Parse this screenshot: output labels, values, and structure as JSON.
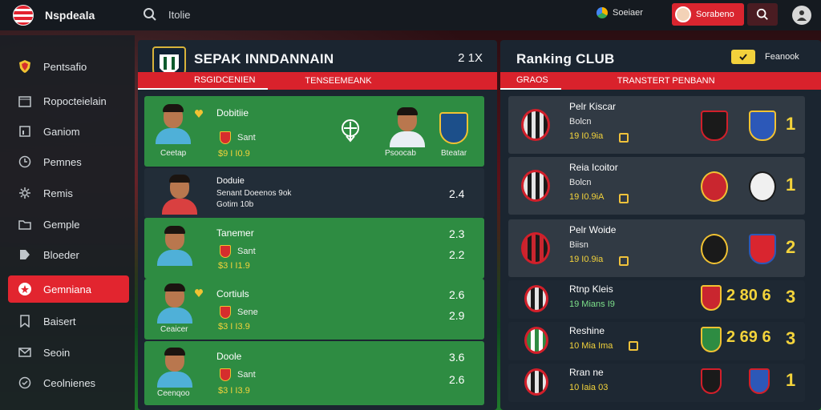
{
  "topbar": {
    "app_title": "Nspdeala",
    "search_text": "Itolie",
    "status_text": "Soeiaer",
    "profile_label": "Sorabeno",
    "icons": {
      "logo": "flag-logo-icon",
      "search": "search-icon",
      "status": "status-dot-icon",
      "user": "user-icon"
    }
  },
  "sidebar": {
    "items": [
      {
        "label": "Pentsafio",
        "icon": "shield-icon",
        "active": false
      },
      {
        "label": "Ropocteielain",
        "icon": "calendar-icon",
        "active": false
      },
      {
        "label": "Ganiom",
        "icon": "chart-icon",
        "active": false
      },
      {
        "label": "Pemnes",
        "icon": "clock-icon",
        "active": false
      },
      {
        "label": "Remis",
        "icon": "gear-icon",
        "active": false
      },
      {
        "label": "Gemple",
        "icon": "folder-icon",
        "active": false
      },
      {
        "label": "Bloeder",
        "icon": "tag-icon",
        "active": false
      },
      {
        "label": "Gemniana",
        "icon": "star-icon",
        "active": true
      },
      {
        "label": "Baisert",
        "icon": "bookmark-icon",
        "active": false
      },
      {
        "label": "Seoin",
        "icon": "mail-icon",
        "active": false
      },
      {
        "label": "Ceolnienes",
        "icon": "help-icon",
        "active": false
      }
    ],
    "active_color": "#e2252f"
  },
  "left_panel": {
    "title": "SEPAK INNDANNAIN",
    "meta": "2 1X",
    "tabs": [
      "RSGIDCENIEN",
      "TENSEEMEANK"
    ],
    "rows": [
      {
        "name": "Dobitiie",
        "sub": "Sant",
        "stats": "$9  I  I0.9",
        "caption_left": "Ceetap",
        "caption_right": "Psoocab",
        "caption_far": "Bteatar",
        "value": "",
        "value2": ""
      },
      {
        "name": "Doduie",
        "sub": "Senant  Doeenos 9ok",
        "stats": "Gotim 10b",
        "caption_left": "",
        "caption_right": "",
        "caption_far": "",
        "value": "2.4",
        "value2": ""
      },
      {
        "name": "Tanemer",
        "sub": "Sant",
        "stats": "$3  I  I1.9",
        "caption_left": "",
        "caption_right": "",
        "caption_far": "",
        "value": "2.3",
        "value2": "2.2"
      },
      {
        "name": "Cortiuls",
        "sub": "Sene",
        "stats": "$3  I  I3.9",
        "caption_left": "Ceaicer",
        "caption_right": "",
        "caption_far": "",
        "value": "2.6",
        "value2": "2.9"
      },
      {
        "name": "Doole",
        "sub": "Sant",
        "stats": "$3  I  I3.9",
        "caption_left": "Ceenqoo",
        "caption_right": "",
        "caption_far": "",
        "value": "3.6",
        "value2": "2.6"
      }
    ]
  },
  "right_panel": {
    "title": "Ranking  CLUB",
    "follow_label": "Feanook",
    "tabs": [
      "GRAOS",
      "TRANSTERT  PENBANN"
    ],
    "clubs": [
      {
        "name": "Pelr Kiscar",
        "sub": "Bolcn",
        "stats": "19  I0.9ia",
        "score": "1",
        "score_b": ""
      },
      {
        "name": "Reia Icoitor",
        "sub": "Bolcn",
        "stats": "19  I0.9iA",
        "score": "1",
        "score_b": ""
      },
      {
        "name": "Pelr Woide",
        "sub": "Biisn",
        "stats": "19  I0.9ia",
        "score": "2",
        "score_b": ""
      },
      {
        "name": "Rtnp Kleis",
        "sub": "",
        "stats": "19  Mians  I9",
        "score": "3",
        "score_b": "2  80  6"
      },
      {
        "name": "Reshine",
        "sub": "",
        "stats": "10  Mia  Ima",
        "score": "3",
        "score_b": "2  69  6"
      },
      {
        "name": "Rran ne",
        "sub": "",
        "stats": "10  Iaia  03",
        "score": "1",
        "score_b": ""
      }
    ]
  }
}
